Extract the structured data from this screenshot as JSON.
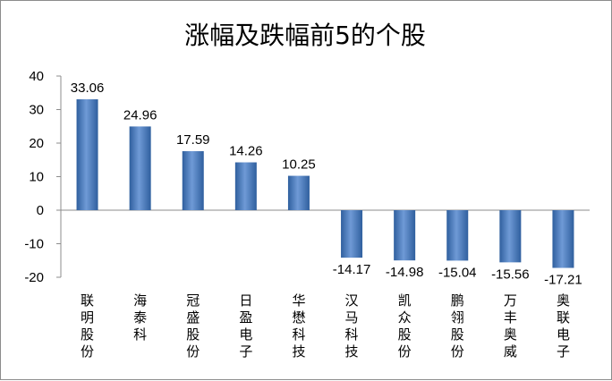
{
  "chart_data": {
    "type": "bar",
    "title": "涨幅及跌幅前5的个股",
    "categories": [
      "联明股份",
      "海泰科",
      "冠盛股份",
      "日盈电子",
      "华懋科技",
      "汉马科技",
      "凯众股份",
      "鹏翎股份",
      "万丰奥威",
      "奥联电子"
    ],
    "values": [
      33.06,
      24.96,
      17.59,
      14.26,
      10.25,
      -14.17,
      -14.98,
      -15.04,
      -15.56,
      -17.21
    ],
    "value_labels": [
      "33.06",
      "24.96",
      "17.59",
      "14.26",
      "10.25",
      "-14.17",
      "-14.98",
      "-15.04",
      "-15.56",
      "-17.21"
    ],
    "y_ticks": [
      "40",
      "30",
      "20",
      "10",
      "0",
      "-10",
      "-20"
    ],
    "ylim": [
      -20,
      40
    ],
    "xlabel": "",
    "ylabel": "",
    "grid": false,
    "legend": "none",
    "colors": {
      "bar_light": "#7ea6dc",
      "bar_mid": "#4f81bd",
      "bar_dark": "#2f5f9e",
      "axis": "#8c8c8c"
    }
  }
}
